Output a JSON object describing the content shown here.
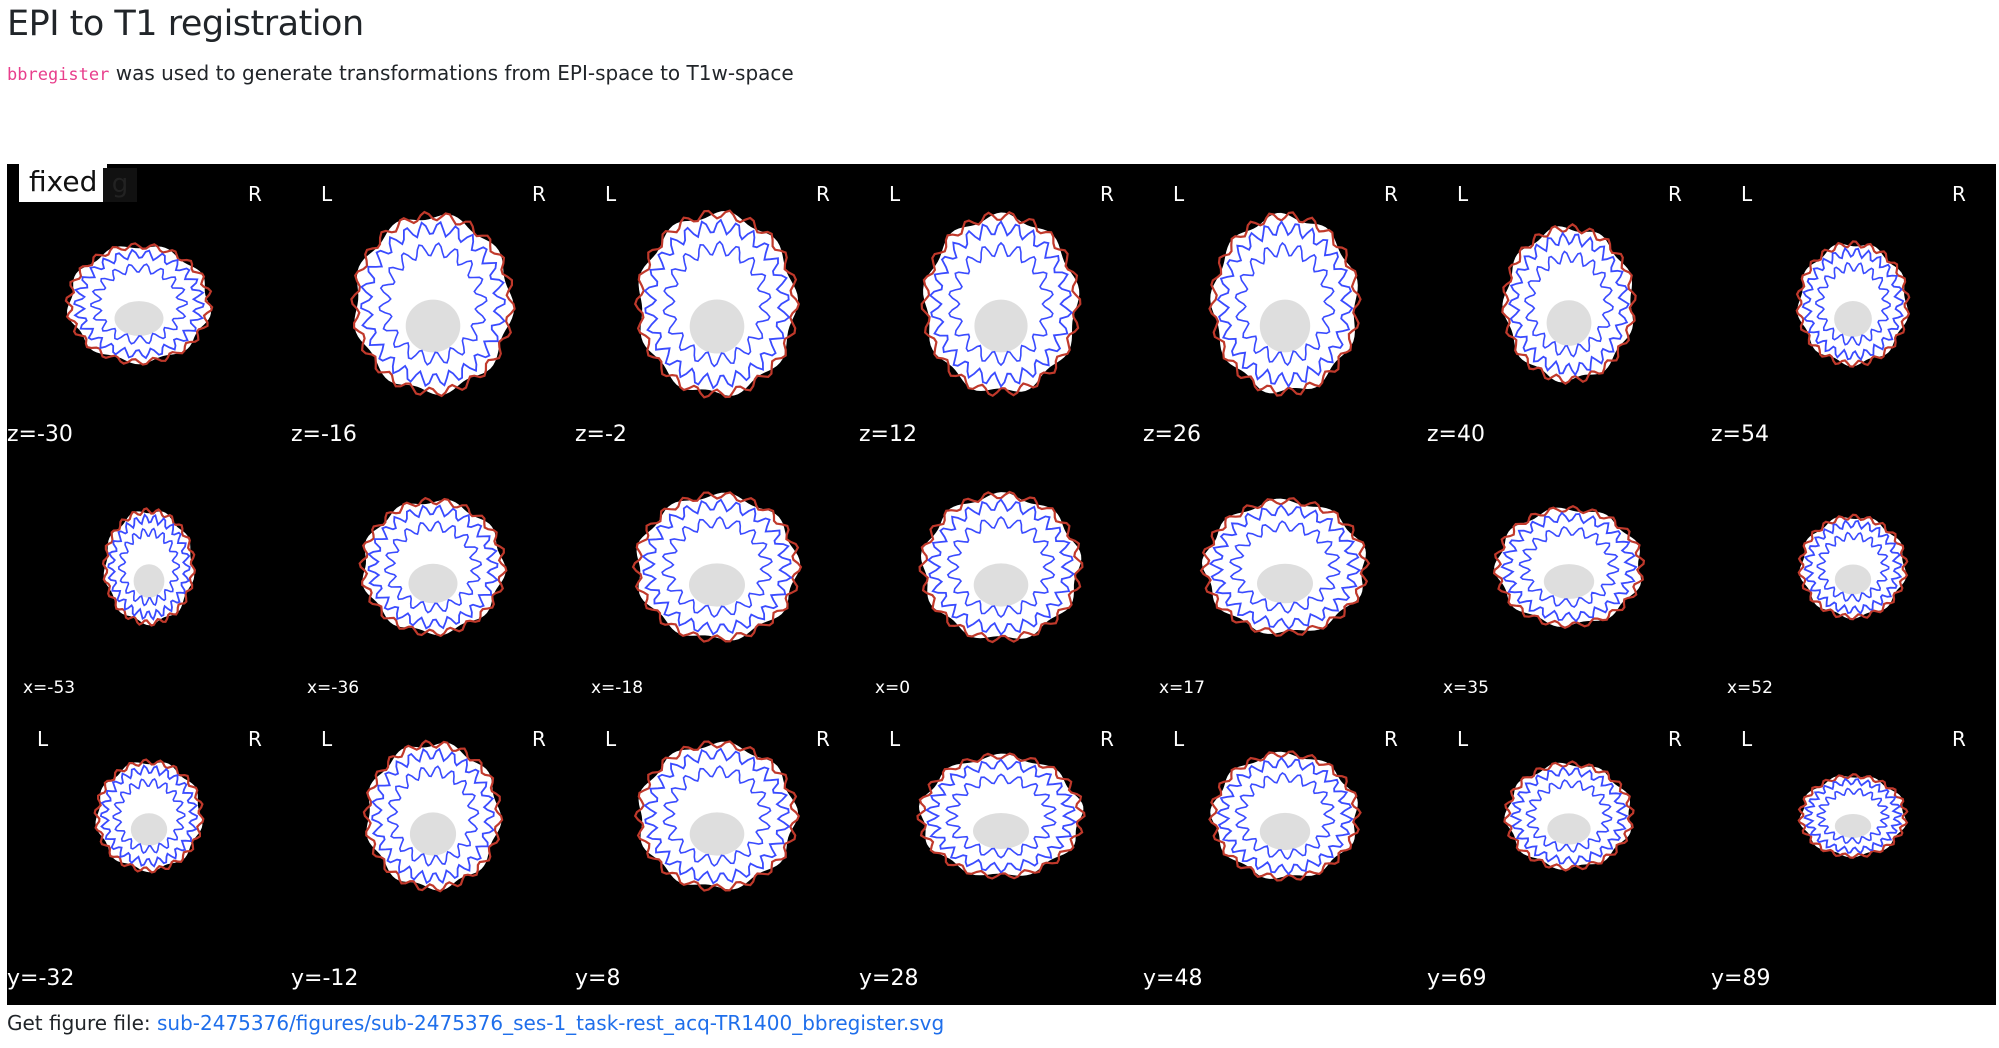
{
  "header": {
    "title": "EPI to T1 registration",
    "tool": "bbregister",
    "description": "was used to generate transformations from EPI-space to T1w-space"
  },
  "figure": {
    "badge": "fixed",
    "badge_ghost": "g",
    "left_label": "L",
    "right_label": "R",
    "rows": [
      {
        "view": "axial",
        "coords": [
          "z=-30",
          "z=-16",
          "z=-2",
          "z=12",
          "z=26",
          "z=40",
          "z=54"
        ]
      },
      {
        "view": "sagittal",
        "coords": [
          "x=-53",
          "x=-36",
          "x=-18",
          "x=0",
          "x=17",
          "x=35",
          "x=52"
        ]
      },
      {
        "view": "coronal",
        "coords": [
          "y=-32",
          "y=-12",
          "y=8",
          "y=28",
          "y=48",
          "y=69",
          "y=89"
        ]
      }
    ],
    "colors": {
      "background": "#000000",
      "brain": "#ffffff",
      "contour_outer": "#c0392b",
      "contour_inner": "#3a4bff"
    }
  },
  "footer": {
    "label": "Get figure file:",
    "link": "sub-2475376/figures/sub-2475376_ses-1_task-rest_acq-TR1400_bbregister.svg"
  }
}
